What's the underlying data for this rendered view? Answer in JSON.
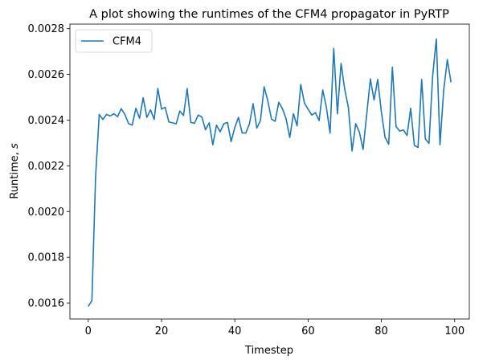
{
  "chart_data": {
    "type": "line",
    "title": "A plot showing the runtimes of the CFM4 propagator in PyRTP",
    "xlabel": "Timestep",
    "ylabel_prefix": "Runtime, ",
    "ylabel_var": "s",
    "xlim": [
      -5,
      104
    ],
    "ylim": [
      0.00153,
      0.00282
    ],
    "xticks": [
      0,
      20,
      40,
      60,
      80,
      100
    ],
    "xtick_labels": [
      "0",
      "20",
      "40",
      "60",
      "80",
      "100"
    ],
    "yticks": [
      0.0016,
      0.0018,
      0.002,
      0.0022,
      0.0024,
      0.0026,
      0.0028
    ],
    "ytick_labels": [
      "0.0016",
      "0.0018",
      "0.0020",
      "0.0022",
      "0.0024",
      "0.0026",
      "0.0028"
    ],
    "grid": false,
    "legend_position": "top-left",
    "series": [
      {
        "name": "CFM4",
        "color": "#1f77b4",
        "x": [
          0,
          1,
          2,
          3,
          4,
          5,
          6,
          7,
          8,
          9,
          10,
          11,
          12,
          13,
          14,
          15,
          16,
          17,
          18,
          19,
          20,
          21,
          22,
          23,
          24,
          25,
          26,
          27,
          28,
          29,
          30,
          31,
          32,
          33,
          34,
          35,
          36,
          37,
          38,
          39,
          40,
          41,
          42,
          43,
          44,
          45,
          46,
          47,
          48,
          49,
          50,
          51,
          52,
          53,
          54,
          55,
          56,
          57,
          58,
          59,
          60,
          61,
          62,
          63,
          64,
          65,
          66,
          67,
          68,
          69,
          70,
          71,
          72,
          73,
          74,
          75,
          76,
          77,
          78,
          79,
          80,
          81,
          82,
          83,
          84,
          85,
          86,
          87,
          88,
          89,
          90,
          91,
          92,
          93,
          94,
          95,
          96,
          97,
          98,
          99
        ],
        "values": [
          0.001585,
          0.00161,
          0.00215,
          0.002425,
          0.002403,
          0.002425,
          0.002418,
          0.002428,
          0.002415,
          0.00245,
          0.002425,
          0.002385,
          0.002378,
          0.002452,
          0.002408,
          0.002498,
          0.002412,
          0.002445,
          0.002403,
          0.002538,
          0.002448,
          0.002456,
          0.002392,
          0.002388,
          0.002384,
          0.00244,
          0.00242,
          0.002538,
          0.00239,
          0.002386,
          0.002422,
          0.002414,
          0.002358,
          0.002388,
          0.002292,
          0.002378,
          0.002349,
          0.002384,
          0.00239,
          0.002306,
          0.002368,
          0.002412,
          0.002344,
          0.002344,
          0.002384,
          0.002472,
          0.002365,
          0.002398,
          0.002546,
          0.002485,
          0.002405,
          0.002395,
          0.002478,
          0.00245,
          0.002405,
          0.002324,
          0.002428,
          0.002375,
          0.002556,
          0.002475,
          0.002448,
          0.002422,
          0.002433,
          0.002398,
          0.002532,
          0.002455,
          0.002343,
          0.002714,
          0.002428,
          0.002648,
          0.002535,
          0.002455,
          0.002265,
          0.002385,
          0.002347,
          0.002272,
          0.002425,
          0.00258,
          0.002488,
          0.002578,
          0.002435,
          0.002325,
          0.002294,
          0.002632,
          0.002372,
          0.002352,
          0.002357,
          0.002333,
          0.002452,
          0.00229,
          0.00228,
          0.002578,
          0.002318,
          0.002298,
          0.002595,
          0.002755,
          0.002292,
          0.00253,
          0.002665,
          0.002565
        ]
      }
    ]
  }
}
